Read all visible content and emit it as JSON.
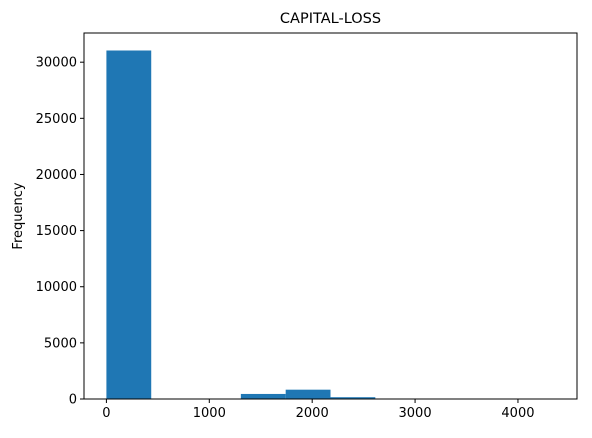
{
  "chart_data": {
    "type": "bar",
    "title": "CAPITAL-LOSS",
    "xlabel": "",
    "ylabel": "Frequency",
    "xlim": [
      -217.8,
      4573.8
    ],
    "ylim": [
      0,
      32600
    ],
    "bins": [
      {
        "x0": 0,
        "x1": 435.6,
        "value": 31042
      },
      {
        "x0": 435.6,
        "x1": 871.2,
        "value": 10
      },
      {
        "x0": 871.2,
        "x1": 1306.8,
        "value": 15
      },
      {
        "x0": 1306.8,
        "x1": 1742.4,
        "value": 450
      },
      {
        "x0": 1742.4,
        "x1": 2178.0,
        "value": 830
      },
      {
        "x0": 2178.0,
        "x1": 2613.6,
        "value": 160
      },
      {
        "x0": 2613.6,
        "x1": 3049.2,
        "value": 10
      },
      {
        "x0": 3049.2,
        "x1": 3484.8,
        "value": 3
      },
      {
        "x0": 3484.8,
        "x1": 3920.4,
        "value": 5
      },
      {
        "x0": 3920.4,
        "x1": 4356.0,
        "value": 3
      }
    ],
    "xticks": [
      0,
      1000,
      2000,
      3000,
      4000
    ],
    "yticks": [
      0,
      5000,
      10000,
      15000,
      20000,
      25000,
      30000
    ],
    "bar_color": "#1f77b4",
    "grid": false,
    "legend": "none"
  }
}
